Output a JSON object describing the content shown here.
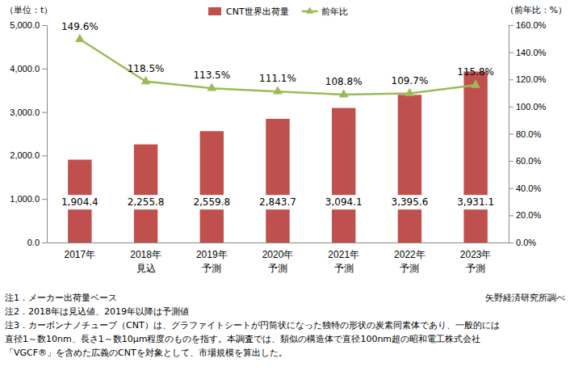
{
  "chart_data": {
    "type": "bar",
    "y_label": "（単位：t）",
    "y2_label": "（前年比：%）",
    "categories": [
      "2017年",
      "2018年\n見込",
      "2019年\n予測",
      "2020年\n予測",
      "2021年\n予測",
      "2022年\n予測",
      "2023年\n予測"
    ],
    "series": [
      {
        "name": "CNT世界出荷量",
        "type": "bar",
        "color": "#c0504d",
        "values": [
          1904.4,
          2255.8,
          2559.8,
          2843.7,
          3094.1,
          3395.6,
          3931.1
        ],
        "value_labels": [
          "1,904.4",
          "2,255.8",
          "2,559.8",
          "2,843.7",
          "3,094.1",
          "3,395.6",
          "3,931.1"
        ]
      },
      {
        "name": "前年比",
        "type": "line",
        "axis": "y2",
        "color": "#9bbb59",
        "marker": "triangle",
        "values": [
          149.6,
          118.5,
          113.5,
          111.1,
          108.8,
          109.7,
          115.8
        ],
        "value_labels": [
          "149.6%",
          "118.5%",
          "113.5%",
          "111.1%",
          "108.8%",
          "109.7%",
          "115.8%"
        ]
      }
    ],
    "ylim": [
      0,
      5000
    ],
    "yticks": [
      {
        "value": 0,
        "label": "0.0"
      },
      {
        "value": 1000,
        "label": "1,000.0"
      },
      {
        "value": 2000,
        "label": "2,000.0"
      },
      {
        "value": 3000,
        "label": "3,000.0"
      },
      {
        "value": 4000,
        "label": "4,000.0"
      },
      {
        "value": 5000,
        "label": "5,000.0"
      }
    ],
    "y2lim": [
      0,
      160
    ],
    "y2ticks": [
      {
        "value": 0,
        "label": "0.0%"
      },
      {
        "value": 20,
        "label": "20.0%"
      },
      {
        "value": 40,
        "label": "40.0%"
      },
      {
        "value": 60,
        "label": "60.0%"
      },
      {
        "value": 80,
        "label": "80.0%"
      },
      {
        "value": 100,
        "label": "100.0%"
      },
      {
        "value": 120,
        "label": "120.0%"
      },
      {
        "value": 140,
        "label": "140.0%"
      },
      {
        "value": 160,
        "label": "160.0%"
      }
    ],
    "data_labels": true,
    "grid": false,
    "legend": "top",
    "notes": [
      "注1．メーカー出荷量ベース",
      "注2．2018年は見込値、2019年以降は予測値",
      "注3．カーボンナノチューブ（CNT）は、グラファイトシートが円筒状になった独特の形状の炭素同素体であり、一般的には",
      "直径1～数10nm、長さ1～数10μm程度のものを指す。本調査では、類似の構造体で直径100nm超の昭和電工株式会社",
      "「VGCF®」を含めた広義のCNTを対象として、市場規模を算出した。"
    ],
    "source": "矢野経済研究所調べ"
  }
}
